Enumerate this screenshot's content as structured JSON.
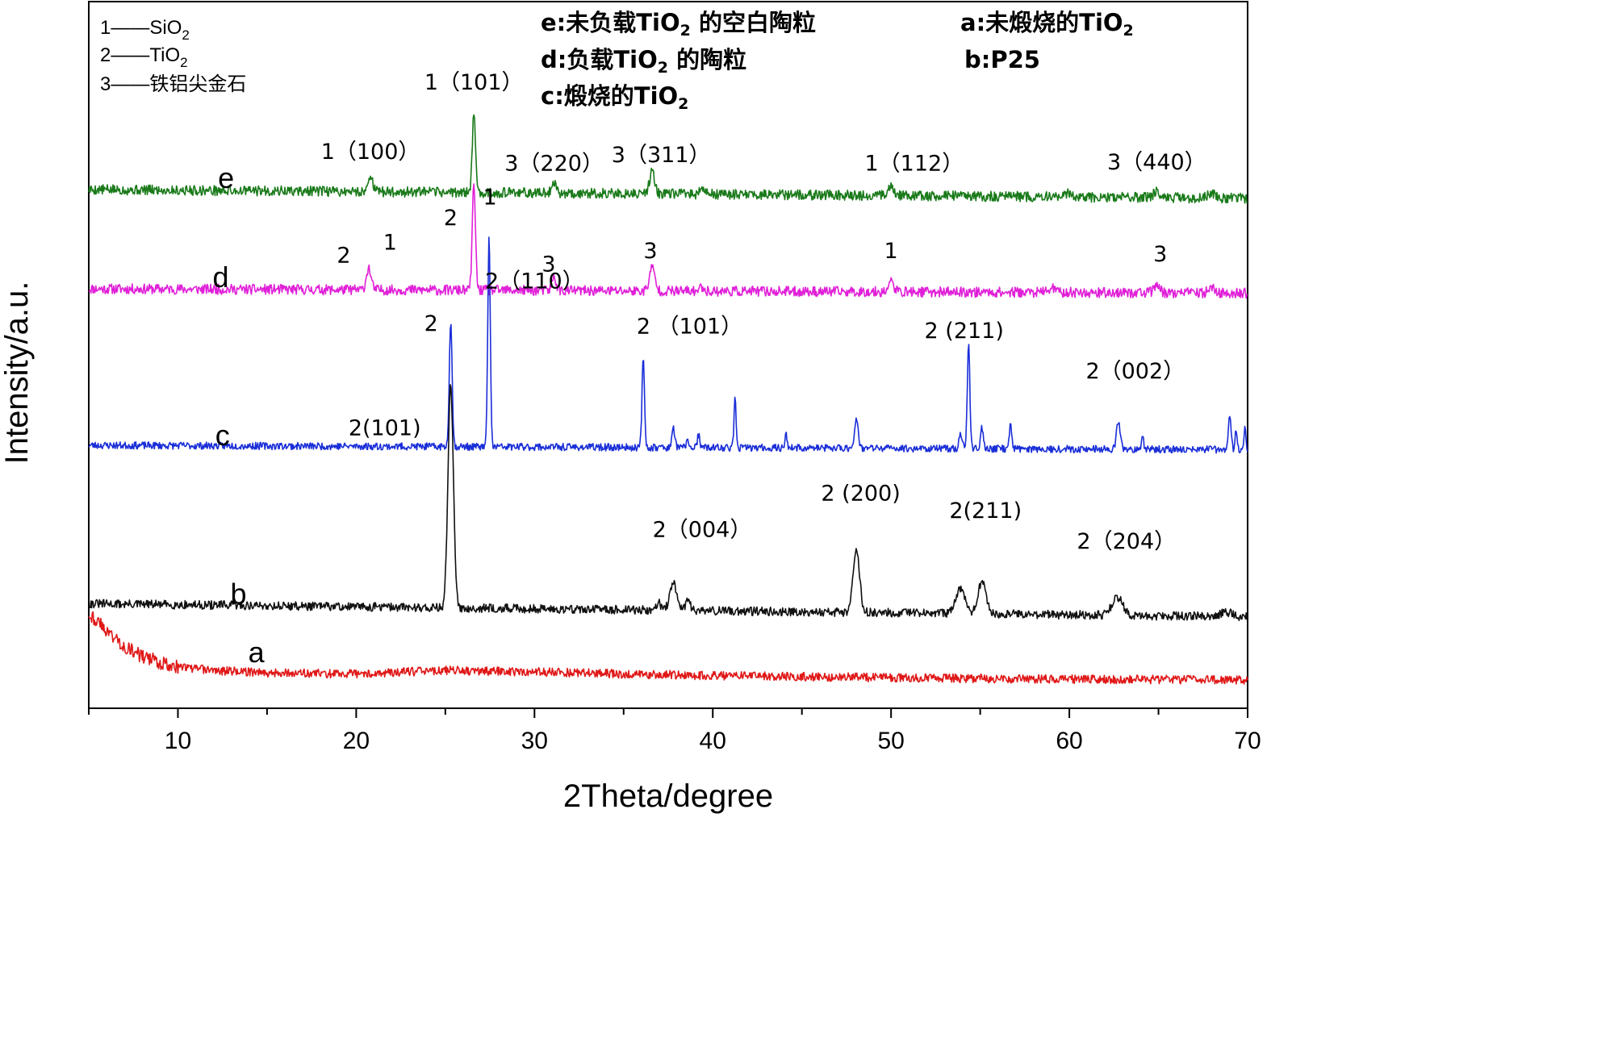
{
  "chart_data": {
    "type": "line",
    "xlabel": "2Theta/degree",
    "ylabel": "Intensity/a.u.",
    "xlim": [
      5,
      70
    ],
    "xticks": [
      10,
      20,
      30,
      40,
      50,
      60,
      70
    ],
    "legend": [
      {
        "id": "1",
        "line": "1——",
        "label": "SiO2",
        "base": "SiO",
        "sub": "2"
      },
      {
        "id": "2",
        "line": "2——",
        "label": "TiO2",
        "base": "TiO",
        "sub": "2"
      },
      {
        "id": "3",
        "line": "3——",
        "label": "铁铝尖金石",
        "base": "铁铝尖金石",
        "sub": ""
      }
    ],
    "sample_legend": [
      {
        "key": "e",
        "pre": "e:未负载TiO",
        "sub": "2",
        "post": " 的空白陶粒"
      },
      {
        "key": "a",
        "pre": "a:未煅烧的TiO",
        "sub": "2",
        "post": ""
      },
      {
        "key": "d",
        "pre": "d:负载TiO",
        "sub": "2",
        "post": " 的陶粒"
      },
      {
        "key": "b",
        "pre": "b:P25",
        "sub": "",
        "post": ""
      },
      {
        "key": "c",
        "pre": "c:煅烧的TiO",
        "sub": "2",
        "post": ""
      }
    ],
    "series": [
      {
        "name": "e",
        "color": "#1a7a1a",
        "noise": 0.35,
        "seed": 5,
        "baseline": [
          [
            5,
            1.5
          ],
          [
            70,
            0.9
          ]
        ],
        "peaks": [
          [
            20.8,
            1.2,
            0.12
          ],
          [
            26.6,
            5.3,
            0.09
          ],
          [
            31.1,
            0.8,
            0.12
          ],
          [
            36.6,
            1.5,
            0.15
          ],
          [
            39.4,
            0.3,
            0.12
          ],
          [
            50.0,
            0.6,
            0.15
          ],
          [
            60.0,
            0.3,
            0.2
          ],
          [
            64.9,
            0.5,
            0.15
          ],
          [
            68.0,
            0.3,
            0.2
          ]
        ],
        "labels": [
          {
            "text": "1（100）",
            "x": 20.8,
            "y": 3.6
          },
          {
            "text": "1（101）",
            "x": 26.6,
            "y": 8.4
          },
          {
            "text": "3（220）",
            "x": 31.1,
            "y": 2.8
          },
          {
            "text": "3（311）",
            "x": 37.1,
            "y": 3.4
          },
          {
            "text": "1（112）",
            "x": 51.3,
            "y": 2.8
          },
          {
            "text": "3（440）",
            "x": 64.9,
            "y": 2.9
          }
        ]
      },
      {
        "name": "d",
        "color": "#e020d8",
        "noise": 0.35,
        "seed": 11,
        "baseline": [
          [
            5,
            1.0
          ],
          [
            70,
            0.7
          ]
        ],
        "peaks": [
          [
            20.7,
            1.5,
            0.13
          ],
          [
            26.6,
            7.2,
            0.09
          ],
          [
            31.1,
            0.9,
            0.12
          ],
          [
            36.6,
            1.6,
            0.15
          ],
          [
            39.4,
            0.3,
            0.12
          ],
          [
            50.0,
            0.7,
            0.15
          ],
          [
            59.0,
            0.3,
            0.2
          ],
          [
            64.9,
            0.6,
            0.15
          ],
          [
            68.0,
            0.3,
            0.2
          ]
        ],
        "labels": [
          {
            "text": "2",
            "x": 19.3,
            "y": 2.8
          },
          {
            "text": "1",
            "x": 21.9,
            "y": 3.7
          },
          {
            "text": "2",
            "x": 25.3,
            "y": 5.4
          },
          {
            "text": "1",
            "x": 27.5,
            "y": 6.8
          },
          {
            "text": "3",
            "x": 30.8,
            "y": 2.2
          },
          {
            "text": "3",
            "x": 36.5,
            "y": 3.1
          },
          {
            "text": "1",
            "x": 50.0,
            "y": 3.1
          },
          {
            "text": "3",
            "x": 65.1,
            "y": 2.9
          }
        ]
      },
      {
        "name": "c",
        "color": "#1a2ed8",
        "noise": 0.25,
        "seed": 23,
        "baseline": [
          [
            5,
            1.0
          ],
          [
            70,
            0.7
          ]
        ],
        "peaks": [
          [
            25.3,
            8.6,
            0.08
          ],
          [
            27.45,
            14.6,
            0.07
          ],
          [
            36.1,
            6.0,
            0.07
          ],
          [
            37.8,
            1.3,
            0.08
          ],
          [
            38.6,
            0.5,
            0.07
          ],
          [
            39.2,
            0.9,
            0.06
          ],
          [
            41.25,
            3.3,
            0.06
          ],
          [
            44.1,
            1.0,
            0.06
          ],
          [
            48.05,
            2.1,
            0.1
          ],
          [
            53.9,
            1.1,
            0.08
          ],
          [
            54.35,
            7.3,
            0.07
          ],
          [
            55.1,
            1.4,
            0.08
          ],
          [
            56.7,
            1.9,
            0.06
          ],
          [
            62.75,
            1.9,
            0.1
          ],
          [
            64.1,
            1.0,
            0.06
          ],
          [
            69.0,
            2.4,
            0.07
          ],
          [
            69.35,
            1.3,
            0.06
          ],
          [
            69.85,
            1.4,
            0.06
          ]
        ],
        "labels": [
          {
            "text": "2",
            "x": 24.2,
            "y": 8.9
          },
          {
            "text": "2（110）",
            "x": 30.0,
            "y": 11.8
          },
          {
            "text": "2 （101）",
            "x": 38.7,
            "y": 8.7
          },
          {
            "text": "2 (211)",
            "x": 54.1,
            "y": 8.4
          },
          {
            "text": "2（002）",
            "x": 63.7,
            "y": 5.6
          }
        ]
      },
      {
        "name": "b",
        "color": "#111111",
        "noise": 0.3,
        "seed": 31,
        "baseline": [
          [
            5,
            1.2
          ],
          [
            70,
            0.3
          ]
        ],
        "peaks": [
          [
            25.3,
            15.3,
            0.15
          ],
          [
            36.95,
            0.5,
            0.15
          ],
          [
            37.8,
            1.8,
            0.2
          ],
          [
            38.6,
            0.6,
            0.15
          ],
          [
            48.05,
            4.5,
            0.18
          ],
          [
            53.9,
            1.7,
            0.25
          ],
          [
            55.1,
            2.2,
            0.22
          ],
          [
            62.7,
            1.2,
            0.3
          ],
          [
            68.8,
            0.3,
            0.3
          ]
        ],
        "labels": [
          {
            "text": "2(101)",
            "x": 21.6,
            "y": 12.8
          },
          {
            "text": "2（004）",
            "x": 39.4,
            "y": 5.8
          },
          {
            "text": "2 (200)",
            "x": 48.3,
            "y": 8.3
          },
          {
            "text": "2(211)",
            "x": 55.3,
            "y": 7.1
          },
          {
            "text": "2（204）",
            "x": 63.2,
            "y": 5.0
          }
        ]
      },
      {
        "name": "a",
        "color": "#e01818",
        "noise": 0.3,
        "seed": 43,
        "baseline": [
          [
            5,
            5.0
          ],
          [
            6,
            3.8
          ],
          [
            7,
            2.7
          ],
          [
            8,
            2.0
          ],
          [
            9,
            1.6
          ],
          [
            10,
            1.3
          ],
          [
            12,
            1.05
          ],
          [
            15,
            0.9
          ],
          [
            20,
            0.8
          ],
          [
            25,
            1.05
          ],
          [
            30,
            0.95
          ],
          [
            35,
            0.8
          ],
          [
            40,
            0.7
          ],
          [
            50,
            0.55
          ],
          [
            60,
            0.45
          ],
          [
            70,
            0.4
          ]
        ],
        "peaks": [],
        "labels": []
      }
    ],
    "series_labels": [
      {
        "text": "e",
        "x": 12.7,
        "y": 1.6
      },
      {
        "text": "d",
        "x": 12.4,
        "y": 1.1
      },
      {
        "text": "c",
        "x": 12.5,
        "y": 1.0
      },
      {
        "text": "b",
        "x": 13.4,
        "y": 1.2
      },
      {
        "text": "a",
        "x": 14.4,
        "y": 1.6
      }
    ]
  }
}
